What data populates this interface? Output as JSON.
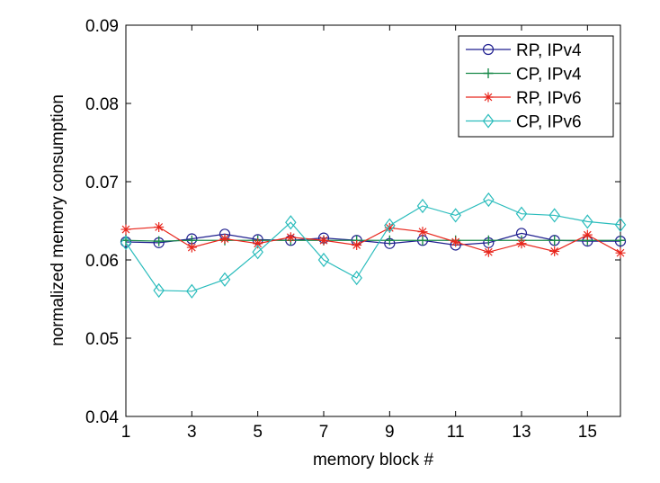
{
  "chart_data": {
    "type": "line",
    "title": "",
    "xlabel": "memory block #",
    "ylabel": "normalized memory consumption",
    "xlim": [
      1,
      16
    ],
    "ylim": [
      0.04,
      0.09
    ],
    "xticks": [
      1,
      3,
      5,
      7,
      9,
      11,
      13,
      15
    ],
    "xtick_labels": [
      "1",
      "3",
      "5",
      "7",
      "9",
      "11",
      "13",
      "15"
    ],
    "yticks": [
      0.04,
      0.05,
      0.06,
      0.07,
      0.08,
      0.09
    ],
    "ytick_labels": [
      "0.04",
      "0.05",
      "0.06",
      "0.07",
      "0.08",
      "0.09"
    ],
    "grid": false,
    "legend_position": "top-right",
    "x": [
      1,
      2,
      3,
      4,
      5,
      6,
      7,
      8,
      9,
      10,
      11,
      12,
      13,
      14,
      15,
      16
    ],
    "series": [
      {
        "name": "RP, IPv4",
        "color": "#1f1f8f",
        "marker": "circle",
        "values": [
          0.0623,
          0.0622,
          0.0627,
          0.0633,
          0.0626,
          0.0625,
          0.0628,
          0.0625,
          0.0621,
          0.0625,
          0.0619,
          0.0622,
          0.0634,
          0.0625,
          0.0624,
          0.0624
        ]
      },
      {
        "name": "CP, IPv4",
        "color": "#1a8a4a",
        "marker": "plus",
        "values": [
          0.0625,
          0.0624,
          0.0625,
          0.0625,
          0.0625,
          0.0625,
          0.0625,
          0.0625,
          0.0625,
          0.0625,
          0.0625,
          0.0625,
          0.0625,
          0.0625,
          0.0625,
          0.0625
        ]
      },
      {
        "name": "RP, IPv6",
        "color": "#e8261c",
        "marker": "star",
        "values": [
          0.0639,
          0.0642,
          0.0616,
          0.0627,
          0.0621,
          0.0629,
          0.0625,
          0.0619,
          0.0641,
          0.0636,
          0.0623,
          0.061,
          0.0621,
          0.0611,
          0.0632,
          0.0609
        ]
      },
      {
        "name": "CP, IPv6",
        "color": "#2abcbc",
        "marker": "diamond",
        "values": [
          0.0622,
          0.0561,
          0.056,
          0.0575,
          0.061,
          0.0648,
          0.06,
          0.0577,
          0.0644,
          0.0669,
          0.0657,
          0.0677,
          0.0659,
          0.0657,
          0.0649,
          0.0645
        ]
      }
    ]
  }
}
